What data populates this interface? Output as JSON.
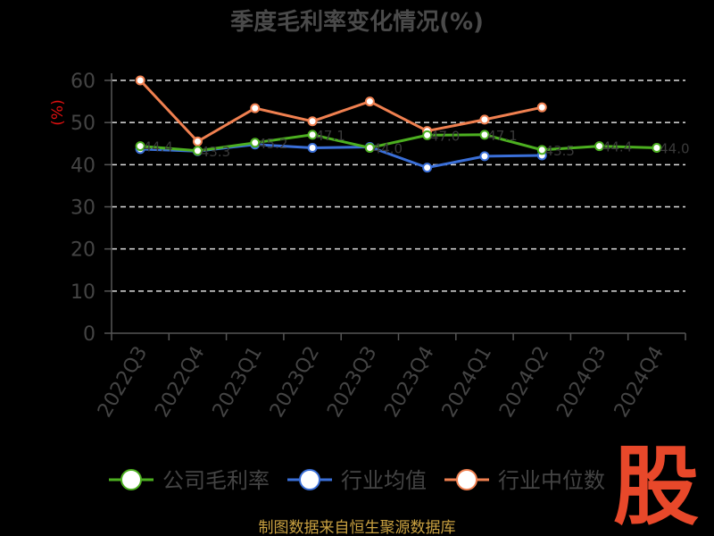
{
  "chart_data": {
    "type": "line",
    "title": "季度毛利率变化情况(%)",
    "ylabel": "(%)",
    "xlabel": "",
    "ylim": [
      0,
      60
    ],
    "yticks": [
      0,
      10,
      20,
      30,
      40,
      50,
      60
    ],
    "grid": true,
    "legend_position": "bottom",
    "categories": [
      "2022Q3",
      "2022Q4",
      "2023Q1",
      "2023Q2",
      "2023Q3",
      "2023Q4",
      "2024Q1",
      "2024Q2",
      "2024Q3",
      "2024Q4"
    ],
    "series": [
      {
        "name": "公司毛利率",
        "color": "#4caf20",
        "values": [
          44.4,
          43.3,
          45.2,
          47.1,
          44.0,
          47.0,
          47.1,
          43.5,
          44.4,
          44.0
        ],
        "labels": [
          "44.4",
          "43.3",
          "45.2",
          "47.1",
          "44.0",
          "47.0",
          "47.1",
          "43.5",
          "44.4",
          "44.0"
        ]
      },
      {
        "name": "行业均值",
        "color": "#3a6fd8",
        "values": [
          43.7,
          43.2,
          44.8,
          44.0,
          44.2,
          39.3,
          42.0,
          42.2,
          null,
          null
        ],
        "labels": []
      },
      {
        "name": "行业中位数",
        "color": "#f08050",
        "values": [
          60.0,
          45.5,
          53.4,
          50.3,
          55.0,
          48.0,
          50.7,
          53.6,
          null,
          null
        ],
        "labels": []
      }
    ]
  },
  "source_note": "制图数据来自恒生聚源数据库",
  "logo_text": "股"
}
